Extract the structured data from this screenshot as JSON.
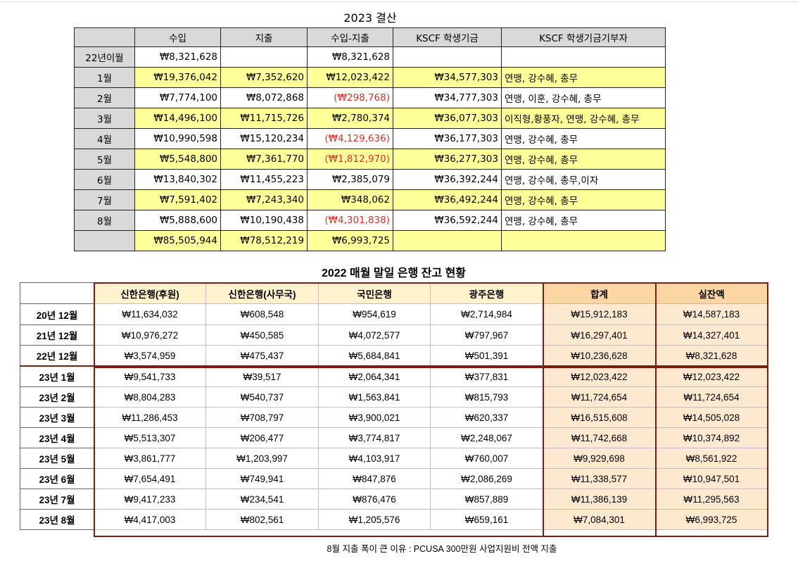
{
  "table1": {
    "title": "2023 결산",
    "headers": [
      "",
      "수입",
      "지출",
      "수입-지출",
      "KSCF 학생기금",
      "KSCF 학생기금기부자"
    ],
    "rows": [
      {
        "label": "22년이월",
        "income": "₩8,321,628",
        "expense": "",
        "diff": "₩8,321,628",
        "diff_negative": false,
        "fund": "",
        "donors": ""
      },
      {
        "label": "1월",
        "income": "₩19,376,042",
        "expense": "₩7,352,620",
        "diff": "₩12,023,422",
        "diff_negative": false,
        "fund": "₩34,577,303",
        "donors": "연맹, 강수혜, 총무"
      },
      {
        "label": "2월",
        "income": "₩7,774,100",
        "expense": "₩8,072,868",
        "diff": "(₩298,768)",
        "diff_negative": true,
        "fund": "₩34,777,303",
        "donors": "연맹, 이훈, 강수혜, 총무"
      },
      {
        "label": "3월",
        "income": "₩14,496,100",
        "expense": "₩11,715,726",
        "diff": "₩2,780,374",
        "diff_negative": false,
        "fund": "₩36,077,303",
        "donors": "이직형,황풍자, 연맹, 강수혜, 총무"
      },
      {
        "label": "4월",
        "income": "₩10,990,598",
        "expense": "₩15,120,234",
        "diff": "(₩4,129,636)",
        "diff_negative": true,
        "fund": "₩36,177,303",
        "donors": "연맹, 강수혜, 총무"
      },
      {
        "label": "5월",
        "income": "₩5,548,800",
        "expense": "₩7,361,770",
        "diff": "(₩1,812,970)",
        "diff_negative": true,
        "fund": "₩36,277,303",
        "donors": "연맹, 강수혜, 총무"
      },
      {
        "label": "6월",
        "income": "₩13,840,302",
        "expense": "₩11,455,223",
        "diff": "₩2,385,079",
        "diff_negative": false,
        "fund": "₩36,392,244",
        "donors": "연맹, 강수혜, 총무,이자"
      },
      {
        "label": "7월",
        "income": "₩7,591,402",
        "expense": "₩7,243,340",
        "diff": "₩348,062",
        "diff_negative": false,
        "fund": "₩36,492,244",
        "donors": "연맹, 강수혜, 총무"
      },
      {
        "label": "8월",
        "income": "₩5,888,600",
        "expense": "₩10,190,438",
        "diff": "(₩4,301,838)",
        "diff_negative": true,
        "fund": "₩36,592,244",
        "donors": "연맹, 강수혜, 총무"
      }
    ],
    "total": {
      "label": "",
      "income": "₩85,505,944",
      "expense": "₩78,512,219",
      "diff": "₩6,993,725",
      "fund": "",
      "donors": ""
    }
  },
  "table2": {
    "title": "2022 매월 말일 은행 잔고 현황",
    "headers": [
      "",
      "신한은행(후원)",
      "신한은행(사무국)",
      "국민은행",
      "광주은행",
      "합계",
      "실잔액"
    ],
    "rows": [
      {
        "label": "20년 12월",
        "values": [
          "₩11,634,032",
          "₩608,548",
          "₩954,619",
          "₩2,714,984",
          "₩15,912,183",
          "₩14,587,183"
        ]
      },
      {
        "label": "21년 12월",
        "values": [
          "₩10,976,272",
          "₩450,585",
          "₩4,072,577",
          "₩797,967",
          "₩16,297,401",
          "₩14,327,401"
        ]
      },
      {
        "label": "22년 12월",
        "values": [
          "₩3,574,959",
          "₩475,437",
          "₩5,684,841",
          "₩501,391",
          "₩10,236,628",
          "₩8,321,628"
        ]
      },
      {
        "label": "23년 1월",
        "values": [
          "₩9,541,733",
          "₩39,517",
          "₩2,064,341",
          "₩377,831",
          "₩12,023,422",
          "₩12,023,422"
        ]
      },
      {
        "label": "23년 2월",
        "values": [
          "₩8,804,283",
          "₩540,737",
          "₩1,563,841",
          "₩815,793",
          "₩11,724,654",
          "₩11,724,654"
        ]
      },
      {
        "label": "23년 3월",
        "values": [
          "₩11,286,453",
          "₩708,797",
          "₩3,900,021",
          "₩620,337",
          "₩16,515,608",
          "₩14,505,028"
        ]
      },
      {
        "label": "23년 4월",
        "values": [
          "₩5,513,307",
          "₩206,477",
          "₩3,774,817",
          "₩2,248,067",
          "₩11,742,668",
          "₩10,374,892"
        ]
      },
      {
        "label": "23년 5월",
        "values": [
          "₩3,861,777",
          "₩1,203,997",
          "₩4,103,917",
          "₩760,007",
          "₩9,929,698",
          "₩8,561,922"
        ]
      },
      {
        "label": "23년 6월",
        "values": [
          "₩7,654,491",
          "₩749,941",
          "₩847,876",
          "₩2,086,269",
          "₩11,338,577",
          "₩10,947,501"
        ]
      },
      {
        "label": "23년 7월",
        "values": [
          "₩9,417,233",
          "₩234,541",
          "₩876,476",
          "₩857,889",
          "₩11,386,139",
          "₩11,295,563"
        ]
      },
      {
        "label": "23년 8월",
        "values": [
          "₩4,417,003",
          "₩802,561",
          "₩1,205,576",
          "₩659,161",
          "₩7,084,301",
          "₩6,993,725"
        ]
      }
    ]
  },
  "footnote": "8월 지출 폭이 큰 이유 : PCUSA 300만원 사업지원비 전액 지출",
  "colors": {
    "header_gray": "#d9d9d9",
    "row_yellow": "#ffff99",
    "negative_red": "#e0302a",
    "bank_header": "#fff2cc",
    "total_header": "#fcd5a4",
    "total_cell": "#fde9d0",
    "frame_border": "#7b1e12"
  }
}
